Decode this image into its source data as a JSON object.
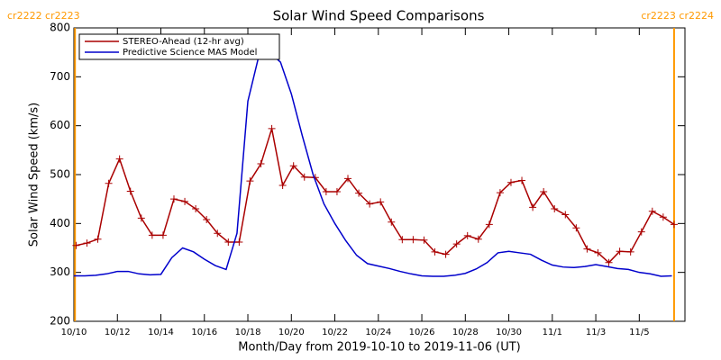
{
  "chart_data": {
    "type": "line",
    "title": "Solar Wind Speed Comparisons",
    "xlabel": "Month/Day from 2019-10-10 to 2019-11-06 (UT)",
    "ylabel": "Solar Wind Speed (km/s)",
    "xlim": [
      0,
      28.1
    ],
    "xticks": [
      {
        "value": 0,
        "label": "10/10"
      },
      {
        "value": 2,
        "label": "10/12"
      },
      {
        "value": 4,
        "label": "10/14"
      },
      {
        "value": 6,
        "label": "10/16"
      },
      {
        "value": 8,
        "label": "10/18"
      },
      {
        "value": 10,
        "label": "10/20"
      },
      {
        "value": 12,
        "label": "10/22"
      },
      {
        "value": 14,
        "label": "10/24"
      },
      {
        "value": 16,
        "label": "10/26"
      },
      {
        "value": 18,
        "label": "10/28"
      },
      {
        "value": 20,
        "label": "10/30"
      },
      {
        "value": 22,
        "label": "11/1"
      },
      {
        "value": 24,
        "label": "11/3"
      },
      {
        "value": 26,
        "label": "11/5"
      }
    ],
    "ylim": [
      200,
      800
    ],
    "yticks": [
      200,
      300,
      400,
      500,
      600,
      700,
      800
    ],
    "legend": "upper left",
    "carrington_lines": [
      {
        "x": 0.05,
        "label": "cr2222 cr2223",
        "color": "#ff9900"
      },
      {
        "x": 27.6,
        "label": "cr2223 cr2224",
        "color": "#ff9900"
      }
    ],
    "series": [
      {
        "name": "STEREO-Ahead (12-hr avg)",
        "color": "#aa0000",
        "markers": true,
        "x": [
          0.1,
          0.6,
          1.1,
          1.6,
          2.1,
          2.6,
          3.1,
          3.6,
          4.1,
          4.6,
          5.1,
          5.6,
          6.1,
          6.6,
          7.1,
          7.6,
          8.1,
          8.6,
          9.1,
          9.6,
          10.1,
          10.6,
          11.1,
          11.6,
          12.1,
          12.6,
          13.1,
          13.6,
          14.1,
          14.6,
          15.1,
          15.6,
          16.1,
          16.6,
          17.1,
          17.6,
          18.1,
          18.6,
          19.1,
          19.6,
          20.1,
          20.6,
          21.1,
          21.6,
          22.1,
          22.6,
          23.1,
          23.6,
          24.1,
          24.6,
          25.1,
          25.6,
          26.1,
          26.6,
          27.1,
          27.6
        ],
        "values": [
          355,
          360,
          368,
          482,
          532,
          466,
          411,
          376,
          376,
          450,
          445,
          430,
          408,
          380,
          362,
          362,
          487,
          522,
          594,
          478,
          518,
          495,
          494,
          465,
          465,
          492,
          462,
          440,
          444,
          403,
          367,
          367,
          366,
          342,
          337,
          358,
          375,
          368,
          398,
          463,
          484,
          488,
          433,
          465,
          430,
          418,
          391,
          348,
          340,
          320,
          343,
          342,
          383,
          425,
          413,
          398
        ]
      },
      {
        "name": "Predictive Science MAS Model",
        "color": "#0000cc",
        "markers": false,
        "x": [
          0,
          0.5,
          1,
          1.5,
          2,
          2.5,
          3,
          3.5,
          4,
          4.5,
          5,
          5.5,
          6,
          6.5,
          7,
          7.5,
          8,
          8.5,
          9,
          9.5,
          10,
          10.5,
          11,
          11.5,
          12,
          12.5,
          13,
          13.5,
          14,
          14.5,
          15,
          15.5,
          16,
          16.5,
          17,
          17.5,
          18,
          18.5,
          19,
          19.5,
          20,
          20.5,
          21,
          21.5,
          22,
          22.5,
          23,
          23.5,
          24,
          24.5,
          25,
          25.5,
          26,
          26.5,
          27,
          27.5
        ],
        "values": [
          293,
          293,
          294,
          297,
          302,
          302,
          297,
          295,
          296,
          330,
          350,
          342,
          327,
          314,
          306,
          380,
          650,
          742,
          750,
          730,
          665,
          580,
          500,
          440,
          400,
          365,
          335,
          318,
          313,
          308,
          302,
          297,
          293,
          292,
          292,
          294,
          298,
          307,
          320,
          340,
          343,
          340,
          337,
          325,
          315,
          311,
          310,
          312,
          316,
          312,
          308,
          306,
          300,
          297,
          292,
          293
        ]
      }
    ]
  }
}
